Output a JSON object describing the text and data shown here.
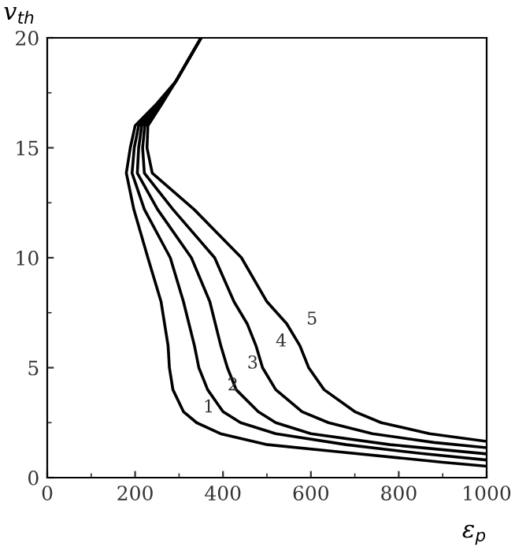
{
  "chart_data": {
    "type": "line",
    "xlabel": "ε$_{p}$",
    "ylabel": "v$_{th}$",
    "xlim": [
      0,
      1000
    ],
    "ylim": [
      0,
      20
    ],
    "xticks": [
      0,
      200,
      400,
      600,
      800,
      1000
    ],
    "yticks": [
      0,
      5,
      10,
      15,
      20
    ],
    "grid": false,
    "marker": "none",
    "line_style": "solid",
    "series": [
      {
        "color": "#000000",
        "x": [
          350,
          292,
          249,
          200,
          189,
          180,
          197,
          229,
          259,
          275,
          278,
          286,
          310,
          340,
          394,
          501,
          650,
          800,
          900,
          1000
        ],
        "values": [
          20,
          18,
          17,
          16,
          15,
          13.85,
          12.2,
          10,
          8,
          6,
          5,
          4,
          3,
          2.5,
          2,
          1.5,
          1.2,
          0.9,
          0.7,
          0.52
        ]
      },
      {
        "color": "#000000",
        "x": [
          350,
          292,
          252,
          208,
          198,
          193,
          221,
          280,
          310,
          335,
          345,
          365,
          400,
          440,
          520,
          680,
          850,
          1000
        ],
        "values": [
          20,
          18,
          17,
          16,
          15,
          13.85,
          12.2,
          10,
          8,
          6,
          5,
          4,
          3,
          2.5,
          2,
          1.5,
          1.1,
          0.8
        ]
      },
      {
        "color": "#000000",
        "x": [
          350,
          292,
          255,
          215,
          208,
          205,
          251,
          328,
          370,
          395,
          410,
          430,
          480,
          520,
          600,
          780,
          1000
        ],
        "values": [
          20,
          18,
          17,
          16,
          15,
          13.85,
          12.2,
          10,
          8,
          6,
          5,
          4,
          3,
          2.5,
          2,
          1.5,
          1.08
        ]
      },
      {
        "color": "#000000",
        "x": [
          350,
          292,
          258,
          222,
          217,
          221,
          286,
          381,
          425,
          455,
          475,
          490,
          520,
          580,
          640,
          740,
          880,
          1000
        ],
        "values": [
          20,
          18,
          17,
          16,
          15,
          13.85,
          12.2,
          10,
          8,
          7,
          6,
          5,
          4,
          3,
          2.5,
          2,
          1.6,
          1.36
        ]
      },
      {
        "color": "#000000",
        "x": [
          350,
          292,
          261,
          229,
          227,
          239,
          334,
          442,
          500,
          545,
          575,
          595,
          630,
          700,
          760,
          870,
          1000
        ],
        "values": [
          20,
          18,
          17,
          16,
          15,
          13.85,
          12.2,
          10,
          8,
          7,
          6,
          5,
          4,
          3,
          2.5,
          2,
          1.65
        ]
      }
    ],
    "annotations": [
      {
        "text": "1",
        "x": 310,
        "y": 3
      },
      {
        "text": "2",
        "x": 365,
        "y": 4
      },
      {
        "text": "3",
        "x": 410,
        "y": 5
      },
      {
        "text": "4",
        "x": 475,
        "y": 6
      },
      {
        "text": "5",
        "x": 545,
        "y": 7
      }
    ]
  }
}
